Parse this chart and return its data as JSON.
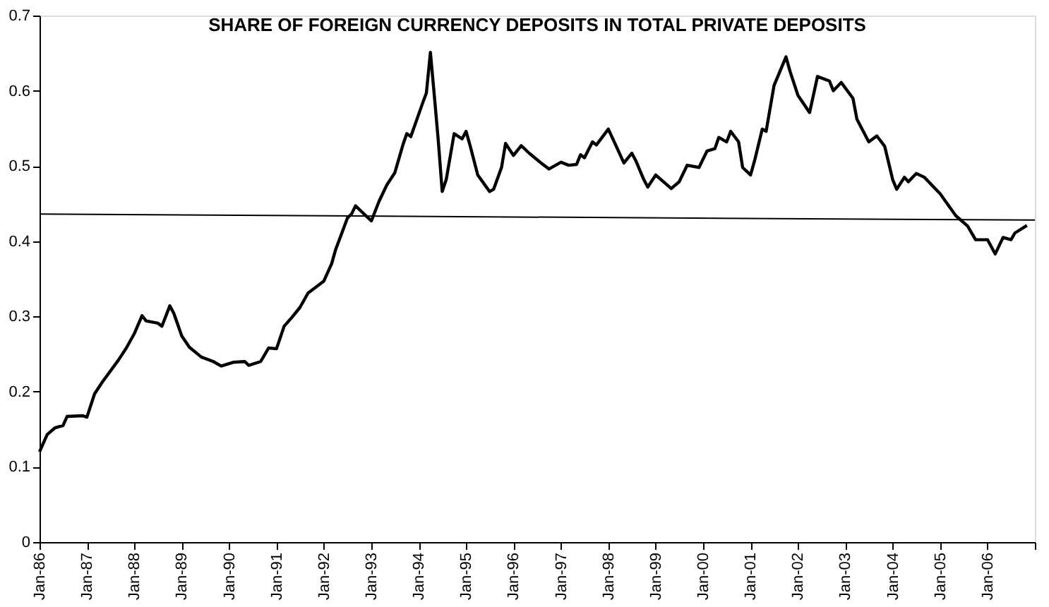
{
  "chart_data": {
    "type": "line",
    "title": "SHARE OF FOREIGN CURRENCY DEPOSITS IN TOTAL PRIVATE DEPOSITS",
    "ylim": [
      0,
      0.7
    ],
    "yticks": [
      0,
      0.1,
      0.2,
      0.3,
      0.4,
      0.5,
      0.6,
      0.7
    ],
    "xlim": [
      "1986-01",
      "2007-01"
    ],
    "xticks": [
      {
        "value": "1986-01",
        "label": "Jan-86"
      },
      {
        "value": "1987-01",
        "label": "Jan-87"
      },
      {
        "value": "1988-01",
        "label": "Jan-88"
      },
      {
        "value": "1989-01",
        "label": "Jan-89"
      },
      {
        "value": "1990-01",
        "label": "Jan-90"
      },
      {
        "value": "1991-01",
        "label": "Jan-91"
      },
      {
        "value": "1992-01",
        "label": "Jan-92"
      },
      {
        "value": "1993-01",
        "label": "Jan-93"
      },
      {
        "value": "1994-01",
        "label": "Jan-94"
      },
      {
        "value": "1995-01",
        "label": "Jan-95"
      },
      {
        "value": "1996-01",
        "label": "Jan-96"
      },
      {
        "value": "1997-01",
        "label": "Jan-97"
      },
      {
        "value": "1998-01",
        "label": "Jan-98"
      },
      {
        "value": "1999-01",
        "label": "Jan-99"
      },
      {
        "value": "2000-01",
        "label": "Jan-00"
      },
      {
        "value": "2001-01",
        "label": "Jan-01"
      },
      {
        "value": "2002-01",
        "label": "Jan-02"
      },
      {
        "value": "2003-01",
        "label": "Jan-03"
      },
      {
        "value": "2004-01",
        "label": "Jan-04"
      },
      {
        "value": "2005-01",
        "label": "Jan-05"
      },
      {
        "value": "2006-01",
        "label": "Jan-06"
      },
      {
        "value": "2007-01",
        "label": null
      }
    ],
    "grid": false,
    "marker": "none",
    "line_style": "solid",
    "series": [
      {
        "color": "#000000",
        "x": [
          "1986-01",
          "1986-03",
          "1986-05",
          "1986-07",
          "1986-08",
          "1986-12",
          "1987-01",
          "1987-03",
          "1987-05",
          "1987-09",
          "1987-11",
          "1988-01",
          "1988-03",
          "1988-04",
          "1988-07",
          "1988-08",
          "1988-10",
          "1988-11",
          "1989-01",
          "1989-03",
          "1989-06",
          "1989-09",
          "1989-11",
          "1990-02",
          "1990-05",
          "1990-06",
          "1990-09",
          "1990-11",
          "1991-01",
          "1991-03",
          "1991-05",
          "1991-07",
          "1991-09",
          "1992-01",
          "1992-03",
          "1992-04",
          "1992-07",
          "1992-08",
          "1992-09",
          "1992-11",
          "1993-01",
          "1993-03",
          "1993-05",
          "1993-07",
          "1993-09",
          "1993-10",
          "1993-11",
          "1994-02",
          "1994-03",
          "1994-04",
          "1994-05",
          "1994-06",
          "1994-07",
          "1994-08",
          "1994-10",
          "1994-12",
          "1995-01",
          "1995-02",
          "1995-04",
          "1995-07",
          "1995-08",
          "1995-10",
          "1995-11",
          "1996-01",
          "1996-03",
          "1996-05",
          "1996-08",
          "1996-10",
          "1997-01",
          "1997-03",
          "1997-05",
          "1997-06",
          "1997-07",
          "1997-09",
          "1997-10",
          "1998-01",
          "1998-03",
          "1998-05",
          "1998-07",
          "1998-08",
          "1998-10",
          "1998-11",
          "1999-01",
          "1999-05",
          "1999-07",
          "1999-09",
          "1999-12",
          "2000-02",
          "2000-04",
          "2000-05",
          "2000-07",
          "2000-08",
          "2000-10",
          "2000-11",
          "2001-01",
          "2001-02",
          "2001-04",
          "2001-05",
          "2001-07",
          "2001-10",
          "2001-11",
          "2002-01",
          "2002-04",
          "2002-06",
          "2002-09",
          "2002-10",
          "2002-12",
          "2003-03",
          "2003-04",
          "2003-07",
          "2003-09",
          "2003-11",
          "2004-01",
          "2004-02",
          "2004-04",
          "2004-05",
          "2004-07",
          "2004-09",
          "2005-01",
          "2005-05",
          "2005-08",
          "2005-10",
          "2006-01",
          "2006-03",
          "2006-05",
          "2006-07",
          "2006-08",
          "2006-11"
        ],
        "values": [
          0.12,
          0.143,
          0.152,
          0.155,
          0.167,
          0.168,
          0.166,
          0.197,
          0.213,
          0.242,
          0.258,
          0.277,
          0.301,
          0.294,
          0.291,
          0.287,
          0.314,
          0.304,
          0.274,
          0.259,
          0.246,
          0.24,
          0.234,
          0.239,
          0.24,
          0.235,
          0.24,
          0.258,
          0.257,
          0.287,
          0.299,
          0.312,
          0.331,
          0.347,
          0.37,
          0.389,
          0.431,
          0.436,
          0.447,
          0.437,
          0.427,
          0.453,
          0.475,
          0.491,
          0.528,
          0.543,
          0.539,
          0.584,
          0.597,
          0.651,
          0.594,
          0.533,
          0.466,
          0.482,
          0.543,
          0.536,
          0.546,
          0.527,
          0.488,
          0.466,
          0.469,
          0.498,
          0.53,
          0.514,
          0.527,
          0.517,
          0.504,
          0.496,
          0.505,
          0.501,
          0.502,
          0.515,
          0.511,
          0.532,
          0.528,
          0.549,
          0.527,
          0.504,
          0.517,
          0.507,
          0.482,
          0.472,
          0.488,
          0.47,
          0.479,
          0.501,
          0.498,
          0.52,
          0.523,
          0.538,
          0.532,
          0.546,
          0.532,
          0.498,
          0.488,
          0.507,
          0.549,
          0.546,
          0.607,
          0.645,
          0.626,
          0.594,
          0.571,
          0.619,
          0.613,
          0.6,
          0.611,
          0.59,
          0.562,
          0.532,
          0.54,
          0.526,
          0.482,
          0.469,
          0.485,
          0.479,
          0.49,
          0.485,
          0.463,
          0.434,
          0.42,
          0.402,
          0.402,
          0.383,
          0.405,
          0.402,
          0.411,
          0.421
        ]
      },
      {
        "type": "line",
        "color": "#000000",
        "x": [
          "1986-01",
          "2007-01"
        ],
        "values": [
          0.436,
          0.428
        ]
      }
    ]
  }
}
